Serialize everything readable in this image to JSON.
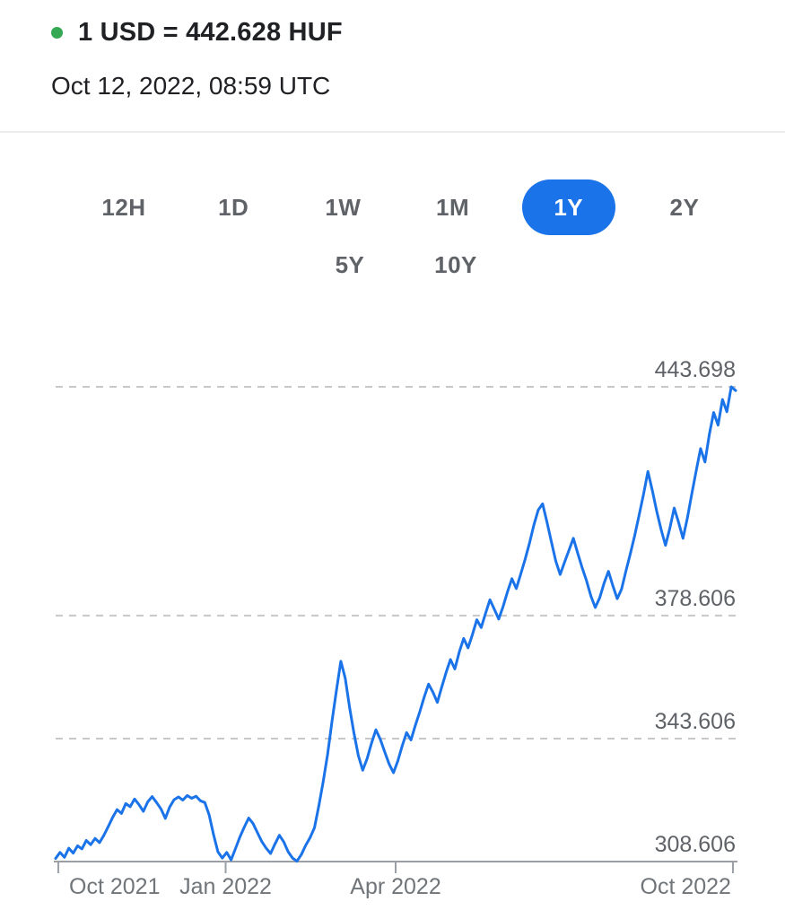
{
  "header": {
    "rate_title": "1 USD = 442.628 HUF",
    "timestamp": "Oct 12, 2022, 08:59 UTC"
  },
  "range_selector": {
    "options": [
      "12H",
      "1D",
      "1W",
      "1M",
      "1Y",
      "2Y",
      "5Y",
      "10Y"
    ],
    "selected": "1Y"
  },
  "colors": {
    "accent_blue": "#1a73e8",
    "line_blue": "#1a73e8",
    "dot_green": "#34a853",
    "button_gray": "#5f6368",
    "grid_gray": "#c8c8c8",
    "axis_gray": "#9aa0a6",
    "y_label_gray": "#5f6368",
    "x_label_gray": "#70757a"
  },
  "chart_data": {
    "type": "line",
    "title": "",
    "xlabel": "",
    "ylabel": "",
    "x_range": [
      "Oct 2021",
      "Oct 2022"
    ],
    "ylim": [
      308.606,
      443.698
    ],
    "grid": "dashed-horizontal",
    "legend": false,
    "y_ticks": [
      {
        "value": 443.698,
        "label": "443.698"
      },
      {
        "value": 378.606,
        "label": "378.606"
      },
      {
        "value": 343.606,
        "label": "343.606"
      },
      {
        "value": 308.606,
        "label": "308.606"
      }
    ],
    "x_ticks": [
      {
        "label": "Oct 2021",
        "pos": 0.004
      },
      {
        "label": "Jan 2022",
        "pos": 0.25
      },
      {
        "label": "Apr 2022",
        "pos": 0.5
      },
      {
        "label": "Oct 2022",
        "pos": 0.996
      }
    ],
    "series": [
      {
        "name": "USD/HUF",
        "values": [
          309.5,
          311.2,
          309.8,
          312.4,
          311.0,
          313.1,
          312.2,
          314.6,
          313.4,
          315.2,
          314.0,
          316.1,
          318.6,
          321.2,
          323.4,
          322.3,
          325.1,
          324.2,
          326.4,
          324.8,
          322.9,
          325.6,
          327.1,
          325.4,
          323.6,
          320.9,
          324.1,
          326.2,
          327.0,
          326.1,
          327.4,
          326.6,
          327.2,
          325.9,
          325.4,
          321.8,
          316.2,
          311.4,
          309.6,
          311.2,
          309.1,
          312.3,
          315.6,
          318.4,
          321.0,
          319.4,
          316.8,
          314.3,
          312.4,
          310.9,
          313.6,
          316.1,
          314.2,
          311.4,
          309.6,
          308.7,
          310.6,
          313.2,
          315.4,
          318.2,
          324.5,
          331.4,
          339.2,
          348.6,
          357.3,
          365.6,
          360.8,
          352.4,
          345.2,
          338.8,
          334.6,
          337.9,
          342.3,
          346.1,
          343.4,
          339.8,
          336.4,
          333.9,
          337.2,
          341.5,
          345.3,
          343.2,
          347.4,
          351.2,
          355.4,
          359.1,
          356.8,
          353.9,
          358.2,
          362.4,
          366.1,
          363.4,
          368.2,
          372.1,
          369.4,
          373.2,
          377.4,
          375.2,
          379.3,
          383.1,
          380.4,
          377.6,
          381.2,
          385.4,
          389.1,
          386.3,
          390.4,
          394.6,
          399.2,
          404.3,
          408.6,
          410.4,
          405.2,
          399.6,
          394.1,
          390.3,
          393.8,
          397.2,
          400.6,
          396.4,
          392.3,
          388.6,
          384.2,
          380.9,
          383.6,
          387.8,
          391.2,
          387.1,
          383.4,
          386.2,
          391.3,
          396.2,
          401.4,
          407.2,
          413.1,
          419.6,
          414.2,
          408.3,
          403.1,
          398.6,
          403.4,
          409.2,
          405.1,
          400.6,
          406.4,
          413.2,
          419.8,
          426.1,
          422.3,
          430.2,
          436.4,
          432.8,
          440.1,
          436.6,
          443.698,
          442.628
        ]
      }
    ]
  }
}
